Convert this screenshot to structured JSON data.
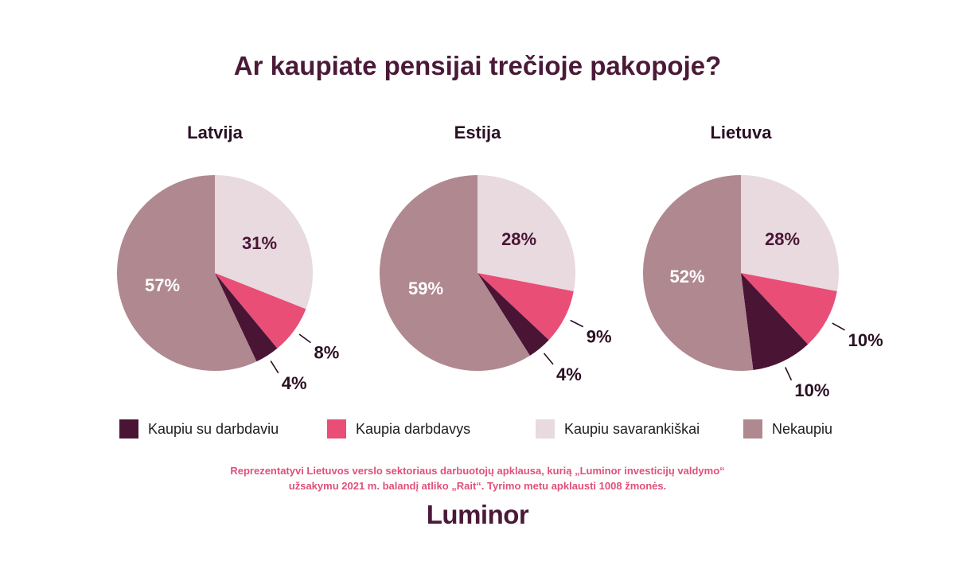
{
  "title": "Ar kaupiate pensijai trečioje pakopoje?",
  "colors": {
    "Kaupiu savarankiškai": "#e8dadf",
    "Kaupia darbdavys": "#e94e77",
    "Kaupiu su darbdaviu": "#4a1535",
    "Nekaupiu": "#b08890"
  },
  "legend": [
    {
      "label": "Kaupiu su darbdaviu",
      "color": "#4a1535"
    },
    {
      "label": "Kaupia darbdavys",
      "color": "#e94e77"
    },
    {
      "label": "Kaupiu savarankiškai",
      "color": "#e8dadf"
    },
    {
      "label": "Nekaupiu",
      "color": "#b08890"
    }
  ],
  "chart_data": [
    {
      "type": "pie",
      "title": "Latvija",
      "categories": [
        "Kaupiu savarankiškai",
        "Kaupia darbdavys",
        "Kaupiu su darbdaviu",
        "Nekaupiu"
      ],
      "values": [
        31,
        8,
        4,
        57
      ],
      "labels": [
        "31%",
        "8%",
        "4%",
        "57%"
      ]
    },
    {
      "type": "pie",
      "title": "Estija",
      "categories": [
        "Kaupiu savarankiškai",
        "Kaupia darbdavys",
        "Kaupiu su darbdaviu",
        "Nekaupiu"
      ],
      "values": [
        28,
        9,
        4,
        59
      ],
      "labels": [
        "28%",
        "9%",
        "4%",
        "59%"
      ]
    },
    {
      "type": "pie",
      "title": "Lietuva",
      "categories": [
        "Kaupiu savarankiškai",
        "Kaupia darbdavys",
        "Kaupiu su darbdaviu",
        "Nekaupiu"
      ],
      "values": [
        28,
        10,
        10,
        52
      ],
      "labels": [
        "28%",
        "10%",
        "10%",
        "52%"
      ]
    }
  ],
  "note": {
    "line1": "Reprezentatyvi Lietuvos verslo sektoriaus darbuotojų apklausa, kurią „Luminor investicijų valdymo“",
    "line2": "užsakymu 2021 m. balandį atliko „Rait“. Tyrimo metu apklausti 1008 žmonės."
  },
  "brand": "Luminor"
}
